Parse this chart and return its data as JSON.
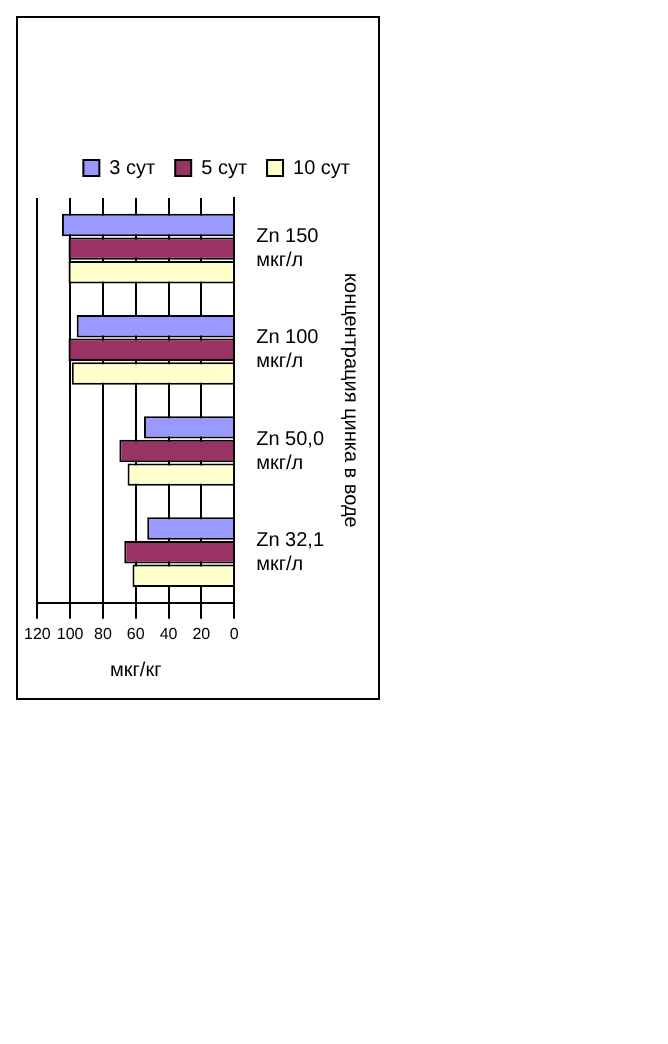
{
  "chart_data": {
    "type": "bar",
    "orientation": "horizontal",
    "xlabel": "мкг/кг",
    "ylabel": "концентрация цинка в воде",
    "categories": [
      "Zn 150 мкг/л",
      "Zn 100 мкг/л",
      "Zn 50,0 мкг/л",
      "Zn 32,1 мкг/л"
    ],
    "series": [
      {
        "name": "3 сут",
        "color": "#9999ff",
        "values": [
          105,
          96,
          55,
          53
        ]
      },
      {
        "name": "5 сут",
        "color": "#993366",
        "values": [
          101,
          101,
          70,
          67
        ]
      },
      {
        "name": "10 сут",
        "color": "#ffffcc",
        "values": [
          101,
          99,
          65,
          62
        ]
      }
    ],
    "xlim": [
      120,
      0
    ],
    "xticks": [
      120,
      100,
      80,
      60,
      40,
      20,
      0
    ],
    "grid": "x",
    "legend": "top right"
  }
}
